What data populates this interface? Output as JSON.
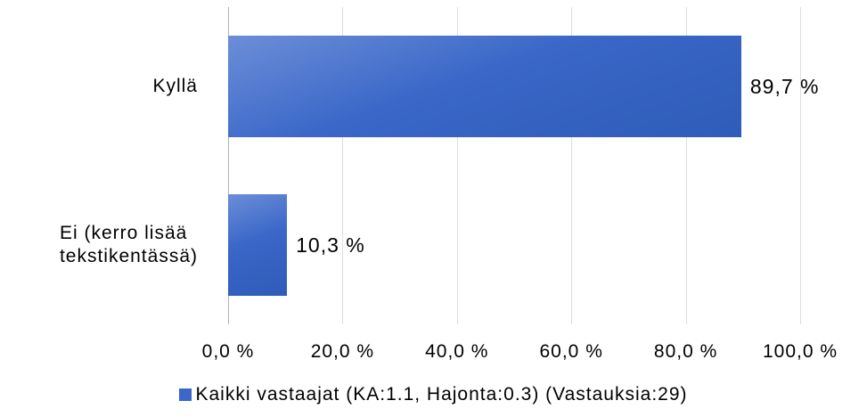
{
  "chart_data": {
    "type": "bar",
    "orientation": "horizontal",
    "categories": [
      "Kyllä",
      "Ei (kerro lisää\ntekstikentässä)"
    ],
    "series": [
      {
        "name": "Kaikki vastaajat (KA:1.1, Hajonta:0.3) (Vastauksia:29)",
        "color": "#3a67c8",
        "values": [
          89.7,
          10.3
        ],
        "value_labels": [
          "89,7 %",
          "10,3 %"
        ]
      }
    ],
    "xlim": [
      0,
      100
    ],
    "xticks": [
      {
        "value": 0,
        "label": "0,0 %"
      },
      {
        "value": 20,
        "label": "20,0 %"
      },
      {
        "value": 40,
        "label": "40,0 %"
      },
      {
        "value": 60,
        "label": "60,0 %"
      },
      {
        "value": 80,
        "label": "80,0 %"
      },
      {
        "value": 100,
        "label": "100,0 %"
      }
    ],
    "grid": true,
    "legend": "bottom"
  }
}
